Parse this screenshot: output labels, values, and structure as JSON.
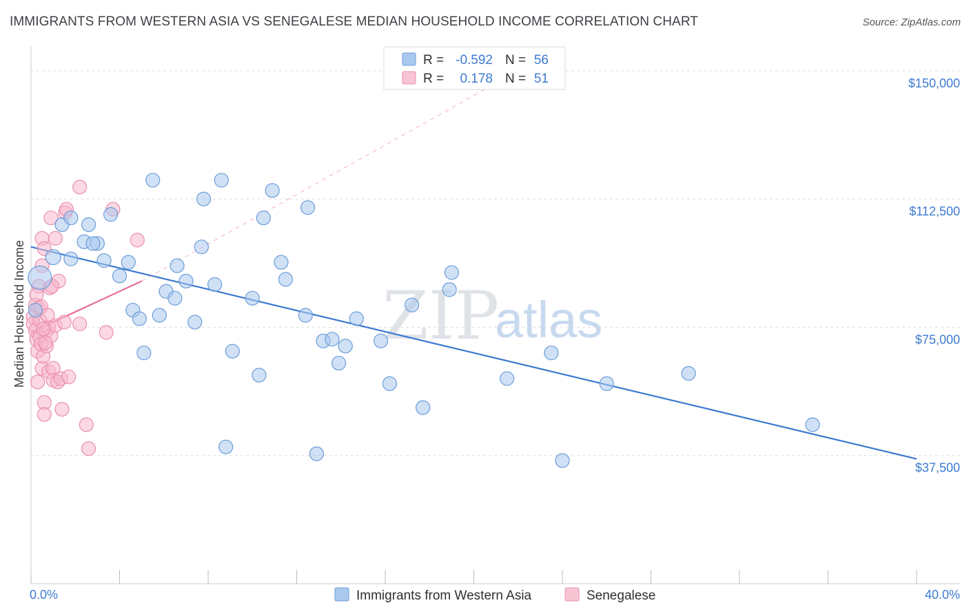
{
  "header": {
    "title": "IMMIGRANTS FROM WESTERN ASIA VS SENEGALESE MEDIAN HOUSEHOLD INCOME CORRELATION CHART",
    "source": "Source: ZipAtlas.com"
  },
  "watermark": {
    "part1": "ZIP",
    "part2": "atlas"
  },
  "legend_top": [
    {
      "r_label": "R =",
      "r_value": "-0.592",
      "n_label": "N =",
      "n_value": "56"
    },
    {
      "r_label": "R =",
      "r_value": "0.178",
      "n_label": "N =",
      "n_value": "51"
    }
  ],
  "colors": {
    "blue_fill": "#a9c8ee",
    "blue_stroke": "#6a9bd8",
    "blue_line": "#3a78d0",
    "pink_fill": "#f7b8cc",
    "pink_stroke": "#ea8fae",
    "pink_line": "#e76b95",
    "grid": "#dddddd",
    "tick_text": "#3d7bd1"
  },
  "chart_data": {
    "type": "scatter",
    "title": "IMMIGRANTS FROM WESTERN ASIA VS SENEGALESE MEDIAN HOUSEHOLD INCOME CORRELATION CHART",
    "xlabel": "",
    "ylabel": "Median Household Income",
    "xlim": [
      0,
      40
    ],
    "ylim": [
      0,
      155000
    ],
    "x_tick_labels": [
      "0.0%",
      "40.0%"
    ],
    "y_ticks": [
      {
        "value": 37500,
        "label": "$37,500"
      },
      {
        "value": 75000,
        "label": "$75,000"
      },
      {
        "value": 112500,
        "label": "$112,500"
      },
      {
        "value": 150000,
        "label": "$150,000"
      }
    ],
    "legend": [
      "Immigrants from Western Asia",
      "Senegalese"
    ],
    "series": [
      {
        "name": "Immigrants from Western Asia",
        "r": -0.592,
        "n": 56,
        "points": [
          [
            0.4,
            89500,
            34
          ],
          [
            1.0,
            95500,
            22
          ],
          [
            1.4,
            105000,
            20
          ],
          [
            1.8,
            107000,
            20
          ],
          [
            1.8,
            95000,
            20
          ],
          [
            2.4,
            100000,
            20
          ],
          [
            2.6,
            105000,
            20
          ],
          [
            3.0,
            99500,
            20
          ],
          [
            3.3,
            94500,
            20
          ],
          [
            3.6,
            108000,
            20
          ],
          [
            4.0,
            90000,
            20
          ],
          [
            4.4,
            94000,
            20
          ],
          [
            4.6,
            80000,
            20
          ],
          [
            4.9,
            77500,
            20
          ],
          [
            5.1,
            67500,
            20
          ],
          [
            5.5,
            118000,
            20
          ],
          [
            5.8,
            78500,
            20
          ],
          [
            6.1,
            85500,
            20
          ],
          [
            6.5,
            83500,
            20
          ],
          [
            6.6,
            93000,
            20
          ],
          [
            7.0,
            88500,
            20
          ],
          [
            7.4,
            76500,
            20
          ],
          [
            7.7,
            98500,
            20
          ],
          [
            7.8,
            112500,
            20
          ],
          [
            8.3,
            87500,
            20
          ],
          [
            8.6,
            118000,
            20
          ],
          [
            8.8,
            40000,
            20
          ],
          [
            9.1,
            68000,
            20
          ],
          [
            10.0,
            83500,
            20
          ],
          [
            10.3,
            61000,
            20
          ],
          [
            10.5,
            107000,
            20
          ],
          [
            10.9,
            115000,
            20
          ],
          [
            11.3,
            94000,
            20
          ],
          [
            11.5,
            89000,
            20
          ],
          [
            12.4,
            78500,
            20
          ],
          [
            12.5,
            110000,
            20
          ],
          [
            12.9,
            38000,
            20
          ],
          [
            13.2,
            71000,
            20
          ],
          [
            13.6,
            71500,
            20
          ],
          [
            13.9,
            64500,
            20
          ],
          [
            14.2,
            69500,
            20
          ],
          [
            14.7,
            77500,
            20
          ],
          [
            15.8,
            71000,
            20
          ],
          [
            16.2,
            58500,
            20
          ],
          [
            17.2,
            81500,
            20
          ],
          [
            17.7,
            51500,
            20
          ],
          [
            18.9,
            86000,
            20
          ],
          [
            19.0,
            91000,
            20
          ],
          [
            21.5,
            60000,
            20
          ],
          [
            23.5,
            67500,
            20
          ],
          [
            24.0,
            36000,
            20
          ],
          [
            26.0,
            58500,
            20
          ],
          [
            29.7,
            61500,
            20
          ],
          [
            35.3,
            46500,
            20
          ],
          [
            0.2,
            80000,
            20
          ],
          [
            2.8,
            99500,
            20
          ]
        ]
      },
      {
        "name": "Senegalese",
        "r": 0.178,
        "n": 51,
        "points": [
          [
            0.1,
            78000,
            20
          ],
          [
            0.1,
            76000,
            20
          ],
          [
            0.2,
            81500,
            20
          ],
          [
            0.2,
            74000,
            20
          ],
          [
            0.25,
            71500,
            20
          ],
          [
            0.3,
            68000,
            20
          ],
          [
            0.3,
            59000,
            20
          ],
          [
            0.35,
            87000,
            20
          ],
          [
            0.35,
            80500,
            20
          ],
          [
            0.4,
            77000,
            20
          ],
          [
            0.4,
            72000,
            20
          ],
          [
            0.45,
            70000,
            20
          ],
          [
            0.5,
            101000,
            20
          ],
          [
            0.5,
            63000,
            20
          ],
          [
            0.55,
            66500,
            20
          ],
          [
            0.6,
            98000,
            20
          ],
          [
            0.6,
            53000,
            20
          ],
          [
            0.6,
            49500,
            20
          ],
          [
            0.7,
            74000,
            20
          ],
          [
            0.7,
            69500,
            20
          ],
          [
            0.8,
            62000,
            20
          ],
          [
            0.8,
            75000,
            20
          ],
          [
            0.85,
            86500,
            20
          ],
          [
            0.9,
            107000,
            20
          ],
          [
            0.9,
            72500,
            20
          ],
          [
            1.0,
            63000,
            20
          ],
          [
            1.0,
            59500,
            20
          ],
          [
            1.1,
            101000,
            20
          ],
          [
            1.1,
            75500,
            20
          ],
          [
            1.2,
            59000,
            20
          ],
          [
            1.25,
            88500,
            20
          ],
          [
            1.35,
            60000,
            20
          ],
          [
            1.4,
            51000,
            20
          ],
          [
            1.5,
            76500,
            20
          ],
          [
            1.55,
            108500,
            20
          ],
          [
            1.6,
            109500,
            20
          ],
          [
            1.7,
            60500,
            20
          ],
          [
            2.2,
            116000,
            20
          ],
          [
            2.2,
            76000,
            20
          ],
          [
            2.5,
            46500,
            20
          ],
          [
            2.6,
            39500,
            20
          ],
          [
            3.4,
            73500,
            20
          ],
          [
            3.7,
            109500,
            20
          ],
          [
            4.8,
            100500,
            20
          ],
          [
            0.25,
            84500,
            20
          ],
          [
            0.45,
            81000,
            20
          ],
          [
            0.55,
            74500,
            20
          ],
          [
            0.65,
            70500,
            20
          ],
          [
            0.75,
            78500,
            20
          ],
          [
            0.95,
            87000,
            20
          ],
          [
            0.5,
            93000,
            20
          ]
        ]
      }
    ],
    "trend_lines": [
      {
        "series": "Immigrants from Western Asia",
        "x0": 0,
        "y0": 98500,
        "x1": 40,
        "y1": 36500,
        "style": "solid"
      },
      {
        "series": "Senegalese",
        "x0": 0,
        "y0": 73500,
        "x1": 5.0,
        "y1": 88500,
        "style": "solid"
      },
      {
        "series": "Senegalese",
        "x0": 5.0,
        "y0": 88500,
        "x1": 22.0,
        "y1": 150000,
        "style": "dashed"
      }
    ]
  }
}
